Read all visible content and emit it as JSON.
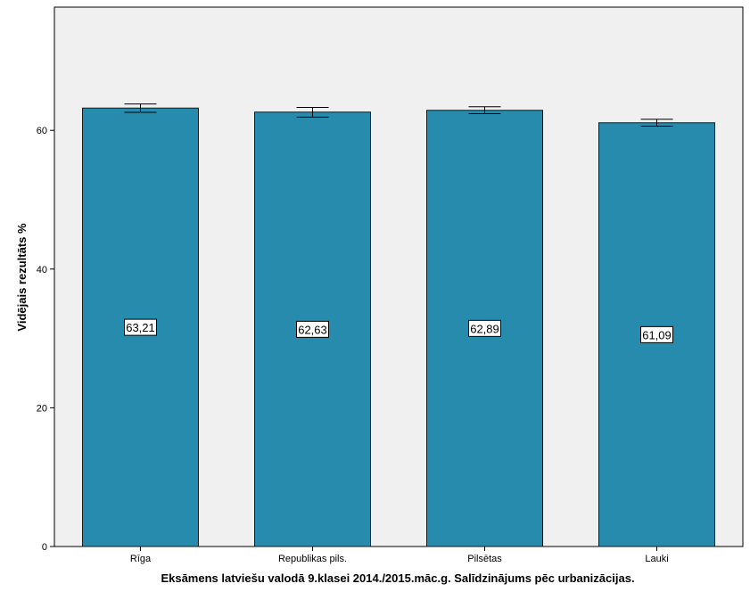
{
  "chart_data": {
    "type": "bar",
    "categories": [
      "Rīga",
      "Republikas pils.",
      "Pilsētas",
      "Lauki"
    ],
    "values": [
      63.21,
      62.63,
      62.89,
      61.09
    ],
    "data_labels": [
      "63,21",
      "62,63",
      "62,89",
      "61,09"
    ],
    "error_bars": [
      {
        "low": 62.6,
        "high": 63.8
      },
      {
        "low": 61.9,
        "high": 63.3
      },
      {
        "low": 62.4,
        "high": 63.4
      },
      {
        "low": 60.6,
        "high": 61.6
      }
    ],
    "title": "",
    "xlabel": "Eksāmens latviešu valodā 9.klasei 2014./2015.māc.g. Salīdzinājums pēc urbanizācijas.",
    "ylabel": "Vidējais rezultāts %",
    "ylim": [
      0,
      78
    ],
    "yticks": [
      0,
      20,
      40,
      60
    ],
    "grid": false,
    "colors": {
      "bar": "#268bad",
      "bar_edge": "#1a1a1a",
      "plot_bg": "#f0f0f0",
      "axis": "#000000",
      "label_bg": "#ffffff"
    }
  }
}
